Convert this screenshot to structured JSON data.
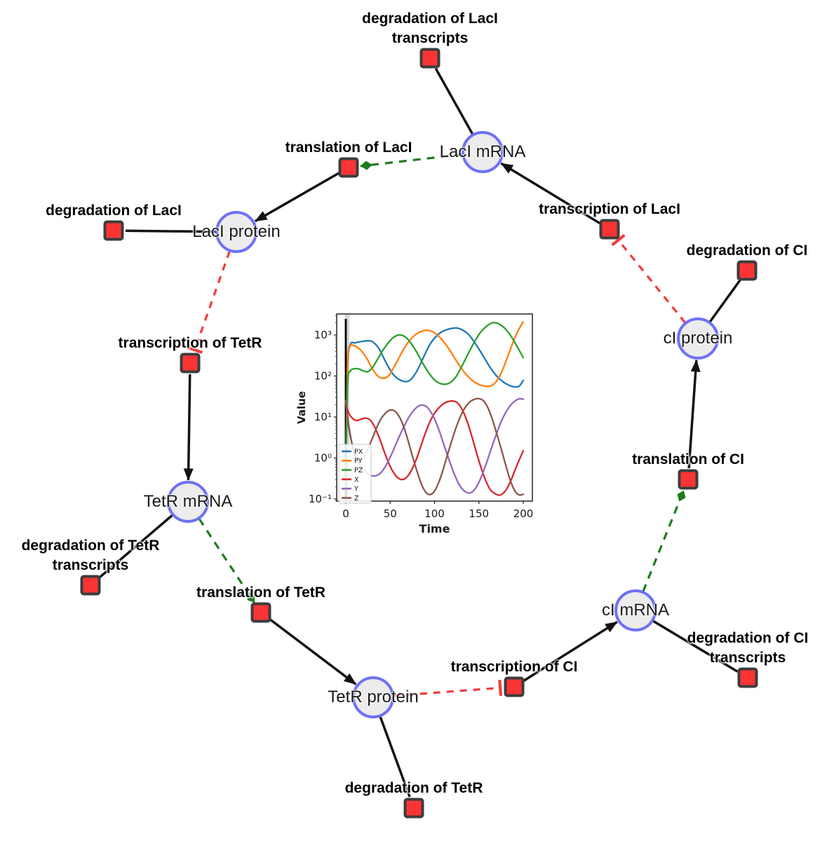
{
  "colors": {
    "species_fill": "#ececec",
    "species_border": "#6e71f8",
    "reaction_fill": "#fa3434",
    "reaction_border": "#3d3d3d",
    "edge_main": "#131313",
    "edge_modifier": "#1d7c1d",
    "edge_inhibition": "#f23c3c"
  },
  "graph": {
    "species": [
      {
        "id": "laci_mrna",
        "label": "LacI mRNA"
      },
      {
        "id": "laci_protein",
        "label": "LacI protein"
      },
      {
        "id": "tetr_mrna",
        "label": "TetR mRNA"
      },
      {
        "id": "tetr_protein",
        "label": "TetR protein"
      },
      {
        "id": "ci_mrna",
        "label": "cI mRNA"
      },
      {
        "id": "ci_protein",
        "label": "cI protein"
      }
    ],
    "reactions": [
      {
        "id": "deg_laci_tx",
        "label_lines": [
          "degradation of LacI",
          "transcripts"
        ]
      },
      {
        "id": "transl_laci",
        "label_lines": [
          "translation of LacI"
        ]
      },
      {
        "id": "transcr_laci",
        "label_lines": [
          "transcription of LacI"
        ]
      },
      {
        "id": "deg_ci",
        "label_lines": [
          "degradation of CI"
        ]
      },
      {
        "id": "transl_ci",
        "label_lines": [
          "translation of CI"
        ]
      },
      {
        "id": "deg_laci",
        "label_lines": [
          "degradation of LacI"
        ]
      },
      {
        "id": "transcr_tetr",
        "label_lines": [
          "transcription of TetR"
        ]
      },
      {
        "id": "deg_tetr_tx",
        "label_lines": [
          "degradation of TetR",
          "transcripts"
        ]
      },
      {
        "id": "transl_tetr",
        "label_lines": [
          "translation of TetR"
        ]
      },
      {
        "id": "deg_tetr",
        "label_lines": [
          "degradation of TetR"
        ]
      },
      {
        "id": "transcr_ci",
        "label_lines": [
          "transcription of CI"
        ]
      },
      {
        "id": "deg_ci_tx",
        "label_lines": [
          "degradation of CI",
          "transcripts"
        ]
      }
    ],
    "edges": [
      {
        "from": "laci_mrna",
        "to": "deg_laci_tx",
        "kind": "consumption"
      },
      {
        "from": "laci_mrna",
        "to": "transl_laci",
        "kind": "modifier"
      },
      {
        "from": "transl_laci",
        "to": "laci_protein",
        "kind": "production"
      },
      {
        "from": "transcr_laci",
        "to": "laci_mrna",
        "kind": "production"
      },
      {
        "from": "ci_protein",
        "to": "transcr_laci",
        "kind": "inhibition"
      },
      {
        "from": "laci_protein",
        "to": "deg_laci",
        "kind": "consumption"
      },
      {
        "from": "laci_protein",
        "to": "transcr_tetr",
        "kind": "inhibition"
      },
      {
        "from": "transcr_tetr",
        "to": "tetr_mrna",
        "kind": "production"
      },
      {
        "from": "tetr_mrna",
        "to": "deg_tetr_tx",
        "kind": "consumption"
      },
      {
        "from": "tetr_mrna",
        "to": "transl_tetr",
        "kind": "modifier"
      },
      {
        "from": "transl_tetr",
        "to": "tetr_protein",
        "kind": "production"
      },
      {
        "from": "tetr_protein",
        "to": "deg_tetr",
        "kind": "consumption"
      },
      {
        "from": "tetr_protein",
        "to": "transcr_ci",
        "kind": "inhibition"
      },
      {
        "from": "transcr_ci",
        "to": "ci_mrna",
        "kind": "production"
      },
      {
        "from": "ci_mrna",
        "to": "deg_ci_tx",
        "kind": "consumption"
      },
      {
        "from": "ci_mrna",
        "to": "transl_ci",
        "kind": "modifier"
      },
      {
        "from": "transl_ci",
        "to": "ci_protein",
        "kind": "production"
      },
      {
        "from": "ci_protein",
        "to": "deg_ci",
        "kind": "consumption"
      }
    ]
  },
  "chart_data": {
    "type": "line",
    "title": "",
    "xlabel": "Time",
    "ylabel": "Value",
    "xscale": "linear",
    "yscale": "log",
    "xlim": [
      -12,
      210
    ],
    "ylim": [
      0.063,
      3200
    ],
    "xticks": [
      0,
      50,
      100,
      150,
      200
    ],
    "ytick_values": [
      0.1,
      1,
      10,
      100,
      1000
    ],
    "ytick_labels": [
      "10⁻¹",
      "10⁰",
      "10¹",
      "10²",
      "10³"
    ],
    "grid": false,
    "legend_position": "lower left",
    "event_line_x": 0,
    "series": [
      {
        "name": "PX",
        "color": "#1f77b4",
        "points": [
          [
            0,
            0.2
          ],
          [
            2,
            150
          ],
          [
            5,
            580
          ],
          [
            10,
            640
          ],
          [
            17,
            690
          ],
          [
            25,
            720
          ],
          [
            30,
            690
          ],
          [
            37,
            480
          ],
          [
            45,
            220
          ],
          [
            52,
            120
          ],
          [
            58,
            88
          ],
          [
            65,
            74
          ],
          [
            72,
            78
          ],
          [
            80,
            130
          ],
          [
            88,
            300
          ],
          [
            95,
            600
          ],
          [
            103,
            980
          ],
          [
            110,
            1250
          ],
          [
            118,
            1430
          ],
          [
            124,
            1480
          ],
          [
            130,
            1380
          ],
          [
            138,
            1050
          ],
          [
            146,
            620
          ],
          [
            154,
            330
          ],
          [
            162,
            170
          ],
          [
            170,
            100
          ],
          [
            178,
            70
          ],
          [
            186,
            57
          ],
          [
            192,
            54
          ],
          [
            196,
            58
          ],
          [
            200,
            78
          ]
        ]
      },
      {
        "name": "PY",
        "color": "#ff7f0e",
        "points": [
          [
            0,
            0.2
          ],
          [
            2,
            200
          ],
          [
            5,
            540
          ],
          [
            8,
            555
          ],
          [
            12,
            520
          ],
          [
            18,
            400
          ],
          [
            24,
            260
          ],
          [
            30,
            150
          ],
          [
            36,
            100
          ],
          [
            42,
            88
          ],
          [
            48,
            100
          ],
          [
            54,
            160
          ],
          [
            60,
            280
          ],
          [
            66,
            480
          ],
          [
            72,
            740
          ],
          [
            78,
            1000
          ],
          [
            84,
            1200
          ],
          [
            90,
            1300
          ],
          [
            96,
            1250
          ],
          [
            102,
            1050
          ],
          [
            110,
            700
          ],
          [
            118,
            400
          ],
          [
            126,
            210
          ],
          [
            134,
            120
          ],
          [
            142,
            80
          ],
          [
            150,
            62
          ],
          [
            158,
            56
          ],
          [
            164,
            58
          ],
          [
            170,
            75
          ],
          [
            176,
            130
          ],
          [
            182,
            280
          ],
          [
            188,
            620
          ],
          [
            194,
            1250
          ],
          [
            200,
            2100
          ]
        ]
      },
      {
        "name": "PZ",
        "color": "#2ca02c",
        "points": [
          [
            0,
            0.2
          ],
          [
            2,
            60
          ],
          [
            5,
            130
          ],
          [
            10,
            150
          ],
          [
            15,
            148
          ],
          [
            20,
            132
          ],
          [
            25,
            128
          ],
          [
            30,
            160
          ],
          [
            36,
            260
          ],
          [
            42,
            430
          ],
          [
            48,
            650
          ],
          [
            53,
            850
          ],
          [
            58,
            980
          ],
          [
            62,
            1000
          ],
          [
            67,
            900
          ],
          [
            73,
            650
          ],
          [
            80,
            380
          ],
          [
            87,
            200
          ],
          [
            94,
            115
          ],
          [
            100,
            80
          ],
          [
            106,
            66
          ],
          [
            112,
            63
          ],
          [
            118,
            70
          ],
          [
            124,
            95
          ],
          [
            130,
            160
          ],
          [
            137,
            320
          ],
          [
            144,
            620
          ],
          [
            151,
            1100
          ],
          [
            158,
            1600
          ],
          [
            164,
            1950
          ],
          [
            168,
            2000
          ],
          [
            173,
            1850
          ],
          [
            180,
            1400
          ],
          [
            187,
            880
          ],
          [
            194,
            480
          ],
          [
            200,
            280
          ]
        ]
      },
      {
        "name": "X",
        "color": "#d62728",
        "points": [
          [
            0,
            22
          ],
          [
            3,
            13
          ],
          [
            7,
            9.5
          ],
          [
            12,
            8.2
          ],
          [
            17,
            8.8
          ],
          [
            22,
            9.4
          ],
          [
            27,
            8.6
          ],
          [
            32,
            6
          ],
          [
            38,
            3
          ],
          [
            44,
            1.3
          ],
          [
            50,
            0.62
          ],
          [
            56,
            0.38
          ],
          [
            62,
            0.3
          ],
          [
            68,
            0.33
          ],
          [
            74,
            0.5
          ],
          [
            80,
            1.0
          ],
          [
            86,
            2.4
          ],
          [
            92,
            5.5
          ],
          [
            98,
            10.5
          ],
          [
            104,
            16
          ],
          [
            110,
            21
          ],
          [
            116,
            24
          ],
          [
            121,
            24.5
          ],
          [
            126,
            22
          ],
          [
            132,
            14
          ],
          [
            138,
            6.5
          ],
          [
            144,
            2.4
          ],
          [
            150,
            0.85
          ],
          [
            156,
            0.35
          ],
          [
            162,
            0.18
          ],
          [
            168,
            0.135
          ],
          [
            174,
            0.125
          ],
          [
            180,
            0.16
          ],
          [
            186,
            0.28
          ],
          [
            192,
            0.6
          ],
          [
            196,
            0.95
          ],
          [
            200,
            1.5
          ]
        ]
      },
      {
        "name": "Y",
        "color": "#9467bd",
        "points": [
          [
            0,
            25
          ],
          [
            3,
            6
          ],
          [
            7,
            2.2
          ],
          [
            12,
            1.0
          ],
          [
            17,
            0.62
          ],
          [
            22,
            0.47
          ],
          [
            28,
            0.38
          ],
          [
            34,
            0.37
          ],
          [
            40,
            0.45
          ],
          [
            46,
            0.7
          ],
          [
            52,
            1.3
          ],
          [
            58,
            2.6
          ],
          [
            64,
            5
          ],
          [
            70,
            9
          ],
          [
            76,
            14
          ],
          [
            82,
            18.5
          ],
          [
            87,
            19.5
          ],
          [
            92,
            17
          ],
          [
            98,
            11
          ],
          [
            104,
            5.5
          ],
          [
            110,
            2.3
          ],
          [
            116,
            0.95
          ],
          [
            122,
            0.42
          ],
          [
            128,
            0.22
          ],
          [
            134,
            0.155
          ],
          [
            140,
            0.14
          ],
          [
            146,
            0.18
          ],
          [
            152,
            0.32
          ],
          [
            158,
            0.7
          ],
          [
            164,
            1.7
          ],
          [
            170,
            4
          ],
          [
            176,
            8.5
          ],
          [
            182,
            15
          ],
          [
            188,
            22
          ],
          [
            193,
            26.5
          ],
          [
            197,
            28
          ],
          [
            200,
            27
          ]
        ]
      },
      {
        "name": "Z",
        "color": "#8c564b",
        "points": [
          [
            0,
            25
          ],
          [
            3,
            7
          ],
          [
            7,
            2.2
          ],
          [
            11,
            1.05
          ],
          [
            15,
            0.82
          ],
          [
            19,
            0.95
          ],
          [
            24,
            1.5
          ],
          [
            29,
            2.7
          ],
          [
            34,
            5
          ],
          [
            39,
            8.5
          ],
          [
            44,
            12
          ],
          [
            48,
            14.2
          ],
          [
            52,
            14.8
          ],
          [
            56,
            13.5
          ],
          [
            61,
            9.5
          ],
          [
            66,
            5.2
          ],
          [
            71,
            2.3
          ],
          [
            76,
            0.95
          ],
          [
            81,
            0.42
          ],
          [
            86,
            0.21
          ],
          [
            91,
            0.14
          ],
          [
            96,
            0.13
          ],
          [
            101,
            0.17
          ],
          [
            106,
            0.3
          ],
          [
            111,
            0.65
          ],
          [
            116,
            1.5
          ],
          [
            121,
            3.4
          ],
          [
            126,
            7
          ],
          [
            131,
            12.5
          ],
          [
            136,
            19
          ],
          [
            141,
            24.5
          ],
          [
            146,
            27.5
          ],
          [
            150,
            28
          ],
          [
            155,
            25
          ],
          [
            160,
            17
          ],
          [
            165,
            9
          ],
          [
            170,
            4
          ],
          [
            175,
            1.7
          ],
          [
            180,
            0.7
          ],
          [
            185,
            0.3
          ],
          [
            190,
            0.165
          ],
          [
            194,
            0.13
          ],
          [
            197,
            0.125
          ],
          [
            200,
            0.13
          ]
        ]
      }
    ]
  }
}
